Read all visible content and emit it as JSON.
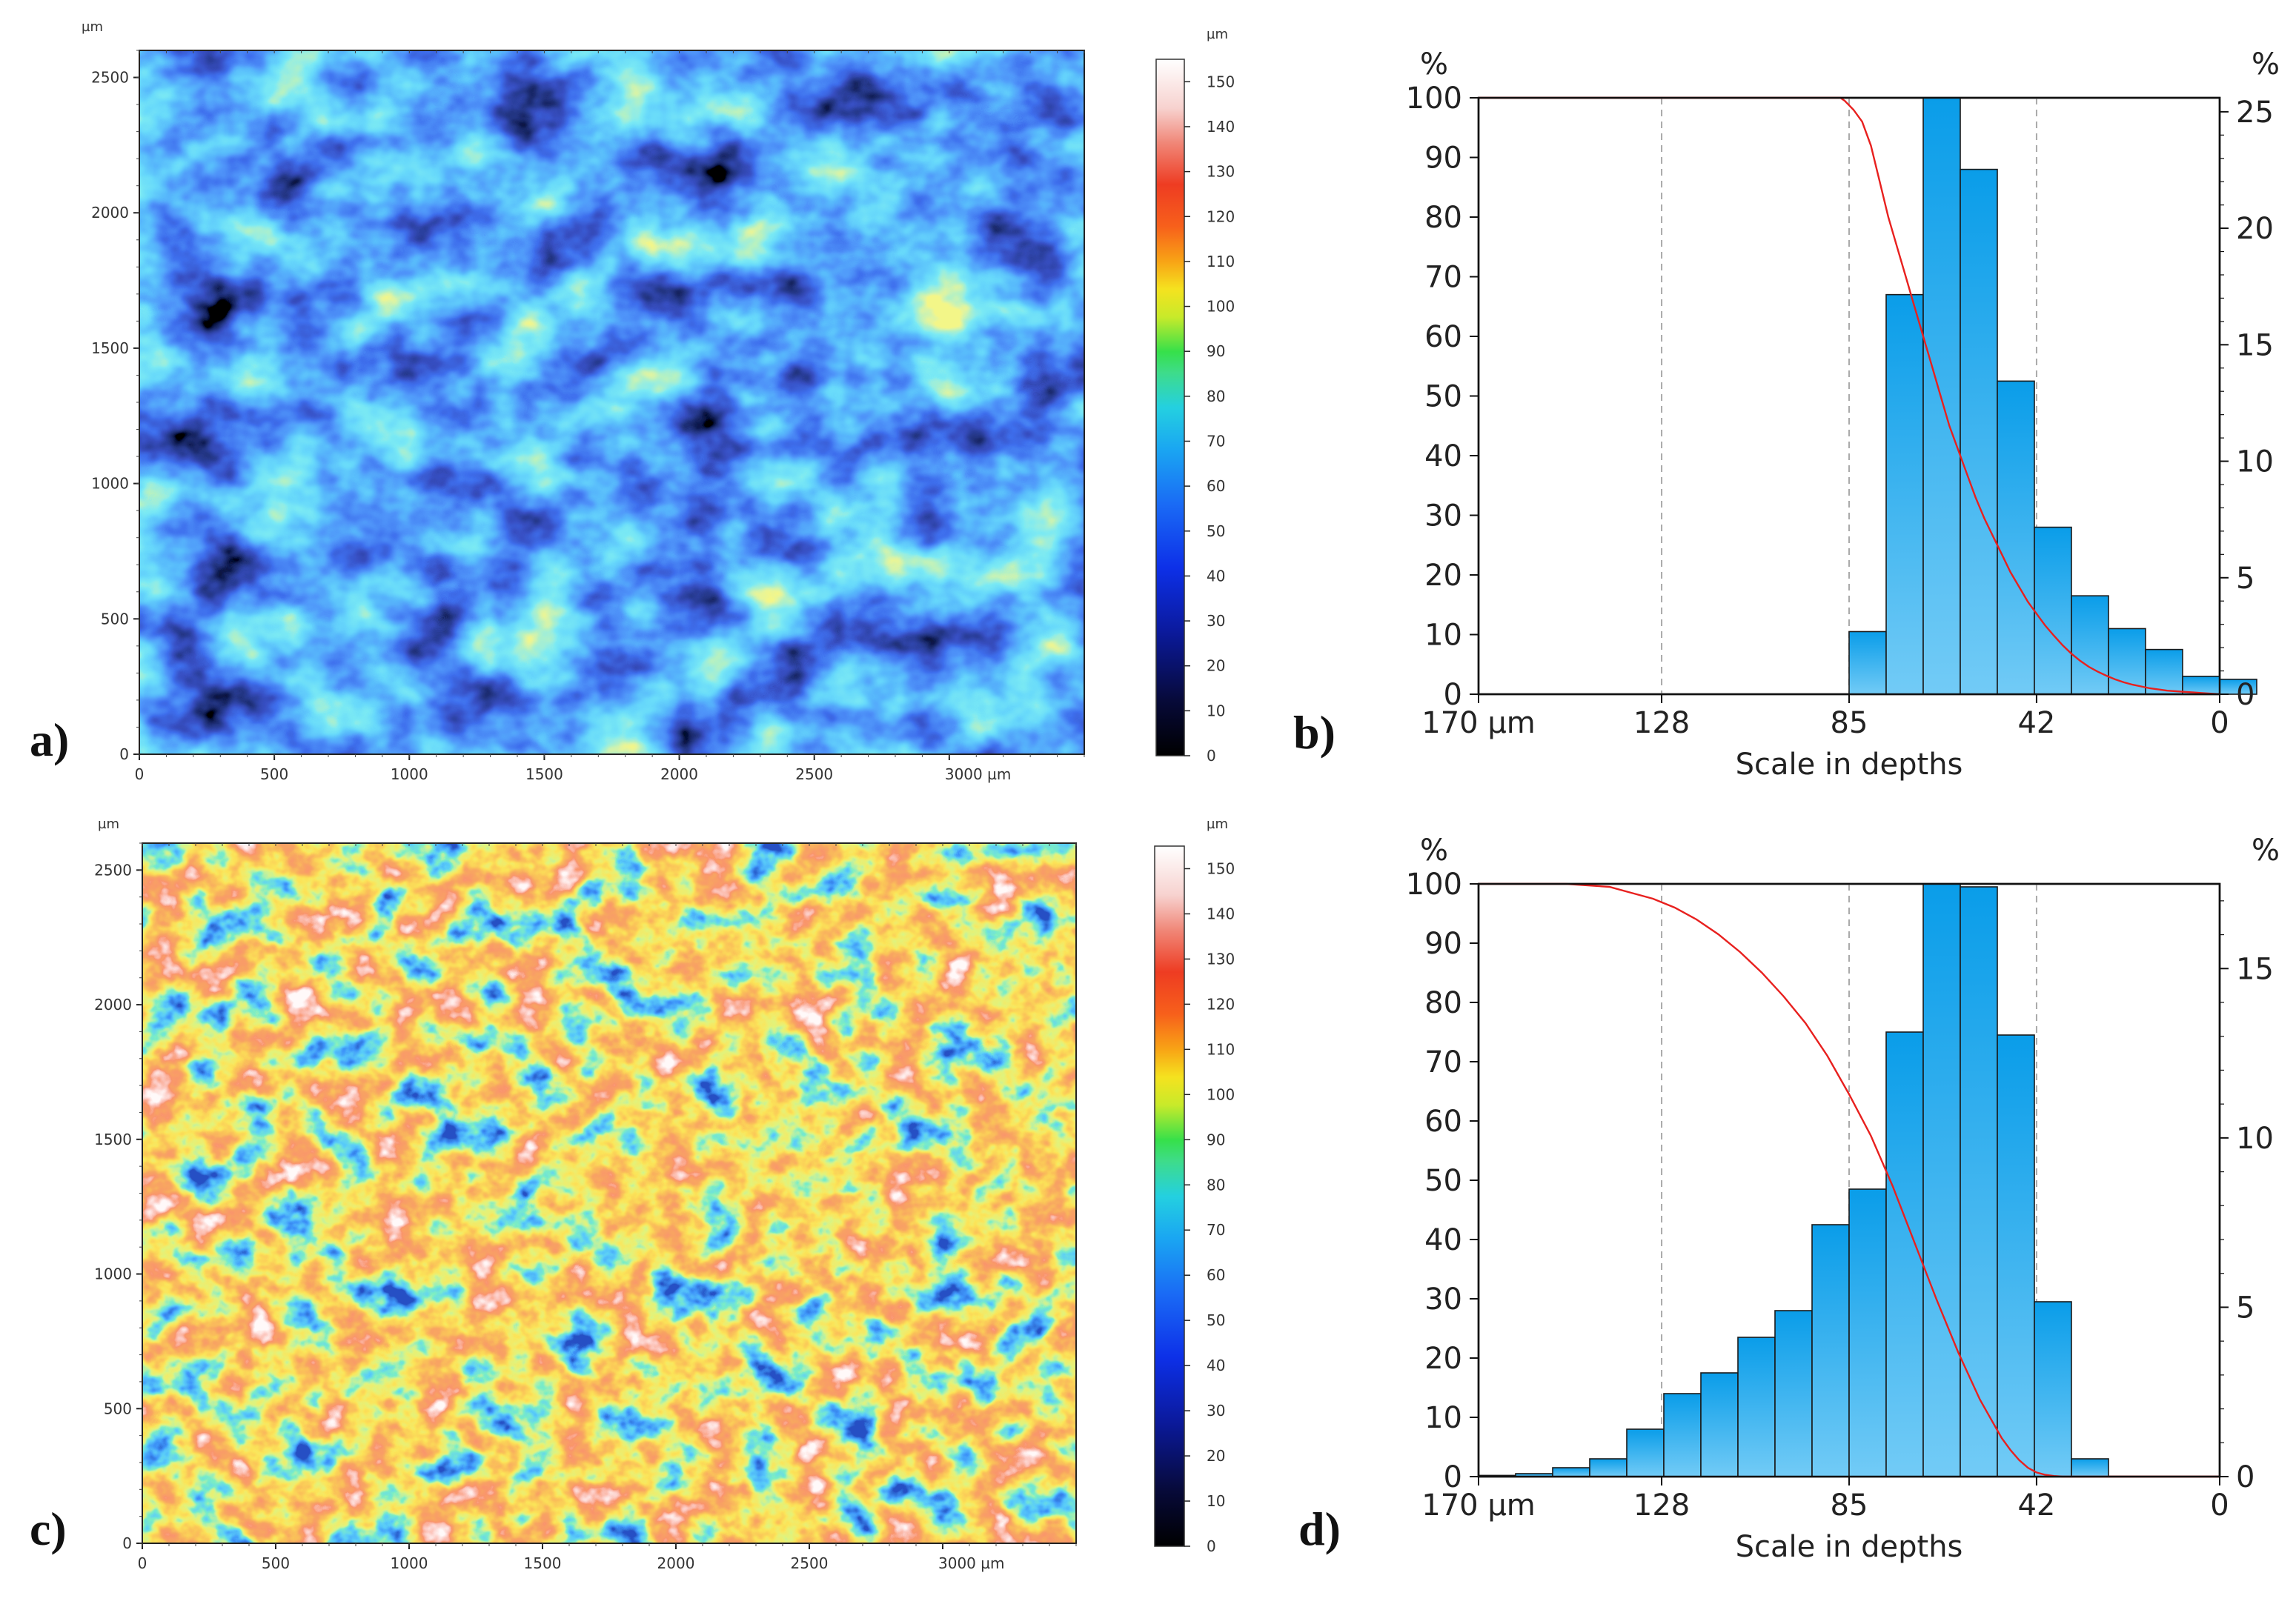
{
  "figure": {
    "panels": [
      "a)",
      "b)",
      "c)",
      "d)"
    ]
  },
  "colors": {
    "bar_fill_top": "#0aa3ec",
    "bar_fill_bottom": "#6fcaf6",
    "bar_stroke": "#1a1a1a",
    "curve": "#e8201e",
    "grid": "#aaaaaa",
    "axis": "#111111"
  },
  "chart_data": [
    {
      "id": "a",
      "type": "heatmap",
      "title": "",
      "x_unit": "µm",
      "y_unit": "µm",
      "colorbar_unit": "µm",
      "xlim": [
        0,
        3500
      ],
      "ylim": [
        0,
        2600
      ],
      "x_ticks": [
        "0",
        "500",
        "1000",
        "1500",
        "2000",
        "2500",
        "3000 µm"
      ],
      "y_ticks": [
        "0",
        "500",
        "1000",
        "1500",
        "2000",
        "2500"
      ],
      "colorbar_ticks": [
        "0",
        "10",
        "20",
        "30",
        "40",
        "50",
        "60",
        "70",
        "80",
        "90",
        "100",
        "110",
        "120",
        "130",
        "140",
        "150"
      ],
      "colorbar_range": [
        0,
        155
      ],
      "surface": "mostly blue (20–60 µm), patches of light blue and green, few dark pits"
    },
    {
      "id": "b",
      "type": "bar",
      "xlabel": "Scale in depths",
      "x_ticks": [
        "170 µm",
        "128",
        "85",
        "42",
        "0"
      ],
      "x_tick_values": [
        170,
        128,
        85,
        42,
        0
      ],
      "xlim": [
        170,
        0
      ],
      "left_axis_unit": "%",
      "left_ticks": [
        "0",
        "10",
        "20",
        "30",
        "40",
        "50",
        "60",
        "70",
        "80",
        "90",
        "100"
      ],
      "ylim_left": [
        0,
        100
      ],
      "right_axis_unit": "%",
      "right_ticks": [
        "0",
        "5",
        "10",
        "15",
        "20",
        "25"
      ],
      "ylim_right": [
        0,
        25.6
      ],
      "bin_width": 8.5,
      "bin_starts": [
        85,
        76.5,
        68,
        59.5,
        51,
        42.5,
        34,
        25.5,
        17,
        8.5,
        0
      ],
      "values_left_scale": [
        10.5,
        67,
        100,
        88,
        52.5,
        28,
        16.5,
        11,
        7.5,
        3,
        2.5
      ],
      "curve_name": "cumulative",
      "curve": {
        "x": [
          170,
          87,
          86,
          84,
          82,
          80,
          78,
          76,
          74,
          72,
          70,
          68,
          66,
          64,
          62,
          60,
          58,
          56,
          54,
          52,
          50,
          48,
          46,
          44,
          42,
          40,
          38,
          36,
          34,
          32,
          30,
          28,
          26,
          24,
          22,
          20,
          18,
          16,
          14,
          12,
          10,
          8,
          6,
          4,
          2,
          0
        ],
        "y": [
          100,
          100,
          99.5,
          98,
          96,
          92,
          86,
          80,
          75,
          70,
          65,
          60,
          55,
          50,
          45,
          41,
          37,
          33,
          29.5,
          26.5,
          23.5,
          20.5,
          18,
          15.5,
          13.5,
          11.5,
          9.8,
          8.2,
          6.8,
          5.6,
          4.6,
          3.8,
          3.1,
          2.5,
          2,
          1.6,
          1.3,
          1,
          0.8,
          0.6,
          0.5,
          0.4,
          0.3,
          0.2,
          0.1,
          0
        ]
      },
      "grid_x": [
        128,
        85,
        42
      ]
    },
    {
      "id": "c",
      "type": "heatmap",
      "title": "",
      "x_unit": "µm",
      "y_unit": "µm",
      "colorbar_unit": "µm",
      "xlim": [
        0,
        3500
      ],
      "ylim": [
        0,
        2600
      ],
      "x_ticks": [
        "0",
        "500",
        "1000",
        "1500",
        "2000",
        "2500",
        "3000 µm"
      ],
      "y_ticks": [
        "0",
        "500",
        "1000",
        "1500",
        "2000",
        "2500"
      ],
      "colorbar_ticks": [
        "0",
        "10",
        "20",
        "30",
        "40",
        "50",
        "60",
        "70",
        "80",
        "90",
        "100",
        "110",
        "120",
        "130",
        "140",
        "150"
      ],
      "colorbar_range": [
        0,
        155
      ],
      "surface": "mostly orange/red (100–130 µm) with green-rimmed blue pits and white highs"
    },
    {
      "id": "d",
      "type": "bar",
      "xlabel": "Scale in depths",
      "x_ticks": [
        "170 µm",
        "128",
        "85",
        "42",
        "0"
      ],
      "x_tick_values": [
        170,
        128,
        85,
        42,
        0
      ],
      "xlim": [
        170,
        0
      ],
      "left_axis_unit": "%",
      "left_ticks": [
        "0",
        "10",
        "20",
        "30",
        "40",
        "50",
        "60",
        "70",
        "80",
        "90",
        "100"
      ],
      "ylim_left": [
        0,
        100
      ],
      "right_axis_unit": "%",
      "right_ticks": [
        "0",
        "5",
        "10",
        "15"
      ],
      "ylim_right": [
        0,
        17.5
      ],
      "bin_width": 8.5,
      "bin_starts": [
        161.5,
        153,
        144.5,
        136,
        127.5,
        119,
        110.5,
        102,
        93.5,
        85,
        76.5,
        68,
        59.5,
        51,
        42.5,
        34
      ],
      "values_left_scale": [
        0.2,
        0.5,
        1.5,
        3,
        8,
        14,
        17.5,
        23.5,
        28,
        42.5,
        48.5,
        75,
        100,
        99.5,
        74.5,
        29.5,
        3
      ],
      "bin_starts_full": [
        170,
        161.5,
        153,
        144.5,
        136,
        127.5,
        119,
        110.5,
        102,
        93.5,
        85,
        76.5,
        68,
        59.5,
        51,
        42.5,
        34
      ],
      "curve_name": "cumulative",
      "curve": {
        "x": [
          170,
          150,
          140,
          135,
          130,
          125,
          120,
          115,
          110,
          105,
          100,
          95,
          90,
          85,
          80,
          75,
          70,
          65,
          60,
          55,
          50,
          48,
          46,
          44,
          42,
          40,
          38,
          36,
          34,
          30,
          20,
          0
        ],
        "y": [
          100,
          100,
          99.5,
          98.5,
          97.5,
          96,
          94,
          91.5,
          88.5,
          85,
          81,
          76.5,
          71,
          64.5,
          57.5,
          49,
          39.5,
          30,
          21,
          13,
          6.5,
          4.5,
          2.8,
          1.5,
          0.7,
          0.3,
          0.1,
          0,
          0,
          0,
          0,
          0
        ]
      },
      "grid_x": [
        128,
        85,
        42
      ]
    }
  ]
}
